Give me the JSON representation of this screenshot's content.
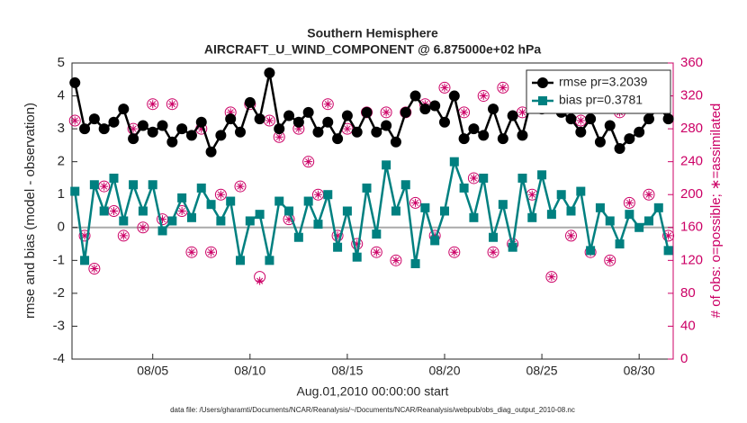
{
  "chart_data": {
    "type": "line",
    "title": "Southern Hemisphere",
    "subtitle": "AIRCRAFT_U_WIND_COMPONENT @ 6.875000e+02 hPa",
    "y_label": "rmse and bias (model - observation)",
    "y2_label": "# of obs: o=possible; ∗=assimilated",
    "x_label": "Aug.01,2010 00:00:00 start",
    "footnote": "data file: /Users/gharamti/Documents/NCAR/Reanalysis/~/Documents/NCAR/Reanalysis/webpub/obs_diag_output_2010-08.nc",
    "zero_line": true,
    "legend": "upper right",
    "xlim": [
      0.85,
      31.75
    ],
    "xticks": [
      {
        "value": 5,
        "label": "08/05"
      },
      {
        "value": 10,
        "label": "08/10"
      },
      {
        "value": 15,
        "label": "08/15"
      },
      {
        "value": 20,
        "label": "08/20"
      },
      {
        "value": 25,
        "label": "08/25"
      },
      {
        "value": 30,
        "label": "08/30"
      }
    ],
    "ylim": [
      -4,
      5
    ],
    "yticks": [
      -4,
      -3,
      -2,
      -1,
      0,
      1,
      2,
      3,
      4,
      5
    ],
    "y2lim": [
      0,
      360
    ],
    "y2ticks": [
      0,
      40,
      80,
      120,
      160,
      200,
      240,
      280,
      320,
      360
    ],
    "x": [
      1,
      1.5,
      2,
      2.5,
      3,
      3.5,
      4,
      4.5,
      5,
      5.5,
      6,
      6.5,
      7,
      7.5,
      8,
      8.5,
      9,
      9.5,
      10,
      10.5,
      11,
      11.5,
      12,
      12.5,
      13,
      13.5,
      14,
      14.5,
      15,
      15.5,
      16,
      16.5,
      17,
      17.5,
      18,
      18.5,
      19,
      19.5,
      20,
      20.5,
      21,
      21.5,
      22,
      22.5,
      23,
      23.5,
      24,
      24.5,
      25,
      25.5,
      26,
      26.5,
      27,
      27.5,
      28,
      28.5,
      29,
      29.5,
      30,
      30.5,
      31,
      31.5
    ],
    "series": [
      {
        "name": "rmse pr=3.2039",
        "color": "#000000",
        "marker": "circle",
        "values": [
          4.4,
          3.0,
          3.3,
          3.0,
          3.2,
          3.6,
          2.7,
          3.1,
          2.9,
          3.1,
          2.6,
          3.0,
          2.8,
          3.2,
          2.3,
          2.8,
          3.3,
          2.9,
          3.8,
          3.3,
          4.7,
          3.0,
          3.4,
          3.2,
          3.5,
          2.9,
          3.2,
          2.7,
          3.4,
          2.9,
          3.5,
          2.9,
          3.1,
          2.6,
          3.5,
          4.0,
          3.6,
          3.7,
          3.2,
          4.0,
          2.7,
          3.0,
          2.8,
          3.6,
          2.7,
          3.4,
          2.8,
          4.0,
          3.6,
          4.2,
          3.5,
          3.3,
          2.9,
          3.3,
          2.6,
          3.1,
          2.4,
          2.7,
          2.9,
          3.3,
          3.7,
          3.3
        ]
      },
      {
        "name": "bias pr=0.3781",
        "color": "#008080",
        "marker": "square",
        "values": [
          1.1,
          -1.0,
          1.3,
          0.5,
          1.5,
          0.2,
          1.3,
          0.5,
          1.3,
          -0.1,
          0.2,
          0.9,
          0.3,
          1.2,
          0.7,
          0.2,
          0.8,
          -1.0,
          0.2,
          0.4,
          -1.0,
          0.8,
          0.5,
          -0.3,
          0.8,
          0.1,
          1.0,
          -0.6,
          0.5,
          -0.9,
          1.2,
          -0.2,
          1.9,
          0.5,
          1.3,
          -1.1,
          0.6,
          -0.4,
          0.5,
          2.0,
          1.2,
          0.3,
          1.5,
          -0.3,
          0.7,
          -0.6,
          1.5,
          0.3,
          1.6,
          0.4,
          1.0,
          0.5,
          1.1,
          -0.7,
          0.6,
          0.2,
          -0.5,
          0.4,
          0.0,
          0.2,
          0.6,
          -0.7
        ]
      },
      {
        "color": "#cc0066",
        "marker": "open-circle",
        "axis": "y2",
        "values": [
          290,
          150,
          110,
          210,
          180,
          150,
          280,
          160,
          310,
          170,
          310,
          180,
          130,
          280,
          130,
          200,
          300,
          210,
          310,
          100,
          290,
          270,
          170,
          280,
          240,
          200,
          310,
          150,
          280,
          140,
          300,
          130,
          300,
          120,
          300,
          190,
          310,
          150,
          330,
          130,
          300,
          220,
          320,
          130,
          330,
          140,
          300,
          200,
          340,
          100,
          320,
          150,
          290,
          130,
          310,
          120,
          300,
          190,
          310,
          200,
          320,
          150
        ]
      },
      {
        "color": "#cc0066",
        "marker": "asterisk",
        "axis": "y2",
        "values": [
          290,
          150,
          110,
          210,
          180,
          150,
          280,
          160,
          310,
          170,
          310,
          180,
          130,
          280,
          130,
          200,
          300,
          210,
          310,
          95,
          290,
          270,
          170,
          280,
          240,
          200,
          310,
          150,
          280,
          140,
          300,
          130,
          300,
          120,
          300,
          190,
          310,
          150,
          330,
          130,
          300,
          220,
          320,
          130,
          330,
          140,
          300,
          200,
          340,
          100,
          320,
          150,
          290,
          130,
          310,
          120,
          300,
          190,
          310,
          200,
          320,
          150
        ]
      }
    ]
  }
}
